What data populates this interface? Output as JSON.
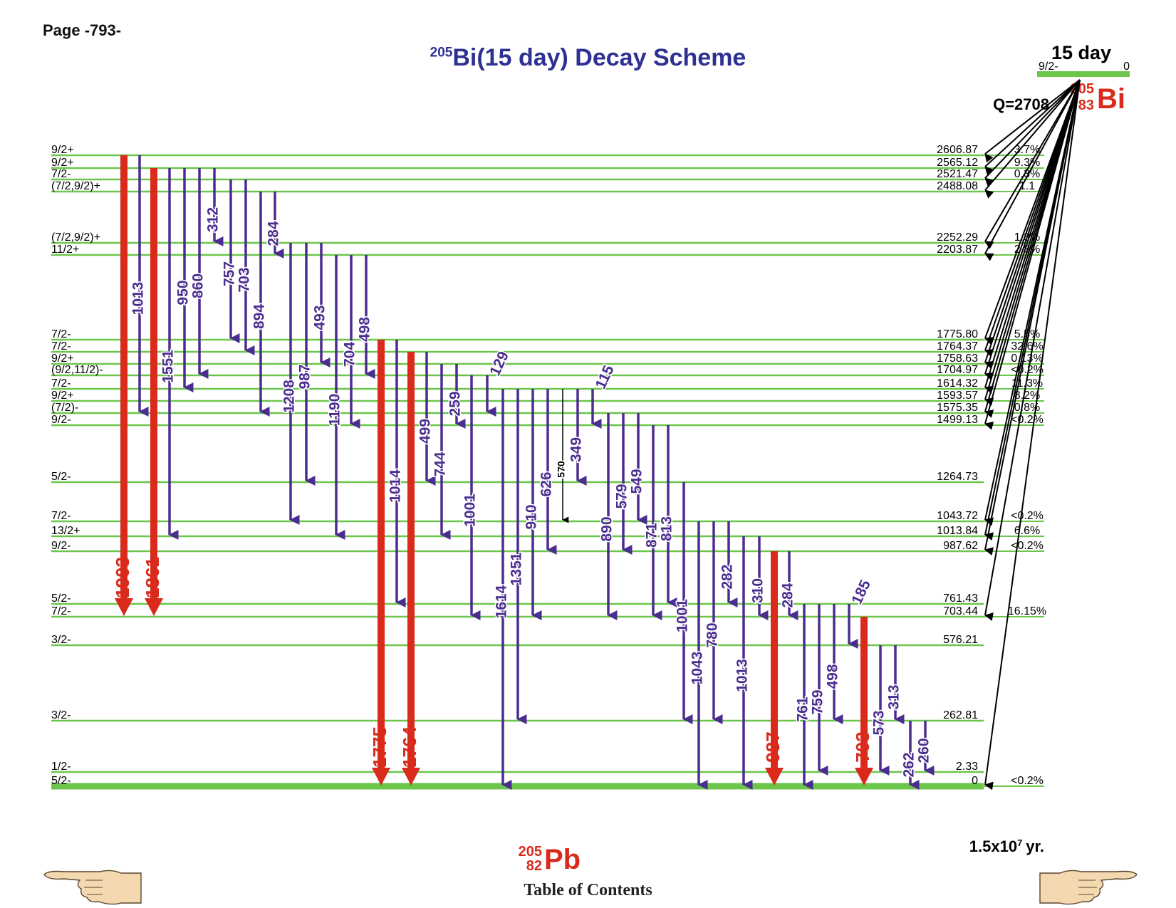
{
  "page": {
    "label": "Page -793-"
  },
  "title": {
    "mass_number": "205",
    "text": "Bi(15 day) Decay Scheme"
  },
  "parent": {
    "half_life": "15 day",
    "spin": "9/2-",
    "energy": "0",
    "mass_number": "205",
    "atomic_number": "83",
    "symbol": "Bi",
    "q_value": "Q=2708"
  },
  "daughter": {
    "mass_number": "205",
    "atomic_number": "82",
    "symbol": "Pb",
    "ground_half_life": "1.5x10",
    "ground_half_life_exp": "7",
    "ground_half_life_unit": "yr."
  },
  "navigation": {
    "table_of_contents": "Table of Contents"
  },
  "colors": {
    "level_line": "#6cc64b",
    "gamma_strong": "#d92a1c",
    "gamma_normal": "#4b2d8f",
    "title": "#2e3192",
    "label_red": "#d92a1c"
  },
  "icons": {
    "prev": "pointing-hand-left-icon",
    "next": "pointing-hand-right-icon"
  },
  "levels": [
    {
      "spin": "9/2+",
      "energy": "2606.87",
      "feeding": "3.7%"
    },
    {
      "spin": "9/2+",
      "energy": "2565.12",
      "feeding": "9.3%"
    },
    {
      "spin": "7/2-",
      "energy": "2521.47",
      "feeding": "0.3%"
    },
    {
      "spin": "(7/2,9/2)+",
      "energy": "2488.08",
      "feeding": "1.1"
    },
    {
      "spin": "(7/2,9/2)+",
      "energy": "2252.29",
      "feeding": "1.3%"
    },
    {
      "spin": "11/2+",
      "energy": "2203.87",
      "feeding": "2.8%"
    },
    {
      "spin": "7/2-",
      "energy": "1775.80",
      "feeding": "5.5%"
    },
    {
      "spin": "7/2-",
      "energy": "1764.37",
      "feeding": "32.6%"
    },
    {
      "spin": "9/2+",
      "energy": "1758.63",
      "feeding": "0.13%"
    },
    {
      "spin": "(9/2,11/2)-",
      "energy": "1704.97",
      "feeding": "<0.2%"
    },
    {
      "spin": "7/2-",
      "energy": "1614.32",
      "feeding": "11.3%"
    },
    {
      "spin": "9/2+",
      "energy": "1593.57",
      "feeding": "8.2%"
    },
    {
      "spin": "(7/2)-",
      "energy": "1575.35",
      "feeding": "0.8%"
    },
    {
      "spin": "9/2-",
      "energy": "1499.13",
      "feeding": "<0.2%"
    },
    {
      "spin": "5/2-",
      "energy": "1264.73",
      "feeding": ""
    },
    {
      "spin": "7/2-",
      "energy": "1043.72",
      "feeding": "<0.2%"
    },
    {
      "spin": "13/2+",
      "energy": "1013.84",
      "feeding": "6.6%"
    },
    {
      "spin": "9/2-",
      "energy": "987.62",
      "feeding": "<0.2%"
    },
    {
      "spin": "5/2-",
      "energy": "761.43",
      "feeding": ""
    },
    {
      "spin": "7/2-",
      "energy": "703.44",
      "feeding": "16.15%"
    },
    {
      "spin": "3/2-",
      "energy": "576.21",
      "feeding": ""
    },
    {
      "spin": "3/2-",
      "energy": "262.81",
      "feeding": ""
    },
    {
      "spin": "1/2-",
      "energy": "2.33",
      "feeding": ""
    },
    {
      "spin": "5/2-",
      "energy": "0",
      "feeding": "<0.2%"
    }
  ],
  "gammas": [
    {
      "label": "1903",
      "from": 0,
      "to": 19,
      "strong": true
    },
    {
      "label": "1013",
      "from": 0,
      "to": 12,
      "strong": false
    },
    {
      "label": "1861",
      "from": 1,
      "to": 19,
      "strong": true
    },
    {
      "label": "1551",
      "from": 1,
      "to": 16,
      "strong": false
    },
    {
      "label": "950",
      "from": 1,
      "to": 10,
      "strong": false
    },
    {
      "label": "860",
      "from": 1,
      "to": 9,
      "strong": false
    },
    {
      "label": "312",
      "from": 1,
      "to": 4,
      "strong": false
    },
    {
      "label": "757",
      "from": 2,
      "to": 6,
      "strong": false
    },
    {
      "label": "703",
      "from": 2,
      "to": 7,
      "strong": false
    },
    {
      "label": "894",
      "from": 3,
      "to": 12,
      "strong": false
    },
    {
      "label": "284",
      "from": 3,
      "to": 5,
      "strong": false
    },
    {
      "label": "1208",
      "from": 4,
      "to": 15,
      "strong": false
    },
    {
      "label": "987",
      "from": 4,
      "to": 14,
      "strong": false
    },
    {
      "label": "493",
      "from": 4,
      "to": 8,
      "strong": false
    },
    {
      "label": "1190",
      "from": 5,
      "to": 16,
      "strong": false
    },
    {
      "label": "704",
      "from": 5,
      "to": 13,
      "strong": false
    },
    {
      "label": "498",
      "from": 5,
      "to": 9,
      "strong": false
    },
    {
      "label": "1775",
      "from": 6,
      "to": 23,
      "strong": true
    },
    {
      "label": "1014",
      "from": 6,
      "to": 18,
      "strong": false
    },
    {
      "label": "1764",
      "from": 7,
      "to": 23,
      "strong": true
    },
    {
      "label": "499",
      "from": 7,
      "to": 14,
      "strong": false
    },
    {
      "label": "744",
      "from": 8,
      "to": 16,
      "strong": false
    },
    {
      "label": "259",
      "from": 8,
      "to": 13,
      "strong": false
    },
    {
      "label": "1001",
      "from": 9,
      "to": 19,
      "strong": false
    },
    {
      "label": "129",
      "from": 9,
      "to": 12,
      "strong": false,
      "diag": true
    },
    {
      "label": "1614",
      "from": 10,
      "to": 23,
      "strong": false
    },
    {
      "label": "1351",
      "from": 10,
      "to": 21,
      "strong": false
    },
    {
      "label": "910",
      "from": 10,
      "to": 19,
      "strong": false
    },
    {
      "label": "626",
      "from": 10,
      "to": 17,
      "strong": false
    },
    {
      "label": "570",
      "from": 10,
      "to": 15,
      "strong": false,
      "thin": true
    },
    {
      "label": "349",
      "from": 10,
      "to": 14,
      "strong": false
    },
    {
      "label": "115",
      "from": 10,
      "to": 13,
      "strong": false,
      "diag": true
    },
    {
      "label": "890",
      "from": 12,
      "to": 19,
      "strong": false
    },
    {
      "label": "579",
      "from": 12,
      "to": 17,
      "strong": false
    },
    {
      "label": "549",
      "from": 12,
      "to": 15,
      "strong": false
    },
    {
      "label": "871",
      "from": 13,
      "to": 19,
      "strong": false
    },
    {
      "label": "813",
      "from": 13,
      "to": 18,
      "strong": false
    },
    {
      "label": "1001",
      "from": 14,
      "to": 21,
      "strong": false
    },
    {
      "label": "1043",
      "from": 15,
      "to": 23,
      "strong": false
    },
    {
      "label": "780",
      "from": 15,
      "to": 21,
      "strong": false
    },
    {
      "label": "282",
      "from": 15,
      "to": 18,
      "strong": false
    },
    {
      "label": "1013",
      "from": 16,
      "to": 23,
      "strong": false
    },
    {
      "label": "310",
      "from": 16,
      "to": 19,
      "strong": false
    },
    {
      "label": "987",
      "from": 17,
      "to": 23,
      "strong": true
    },
    {
      "label": "284",
      "from": 17,
      "to": 19,
      "strong": false
    },
    {
      "label": "761",
      "from": 18,
      "to": 23,
      "strong": false
    },
    {
      "label": "759",
      "from": 18,
      "to": 22,
      "strong": false
    },
    {
      "label": "498",
      "from": 18,
      "to": 21,
      "strong": false
    },
    {
      "label": "185",
      "from": 18,
      "to": 20,
      "strong": false,
      "diag": true
    },
    {
      "label": "703",
      "from": 19,
      "to": 23,
      "strong": true
    },
    {
      "label": "573",
      "from": 20,
      "to": 22,
      "strong": false
    },
    {
      "label": "313",
      "from": 20,
      "to": 21,
      "strong": false
    },
    {
      "label": "262",
      "from": 21,
      "to": 23,
      "strong": false
    },
    {
      "label": "260",
      "from": 21,
      "to": 22,
      "strong": false
    }
  ]
}
